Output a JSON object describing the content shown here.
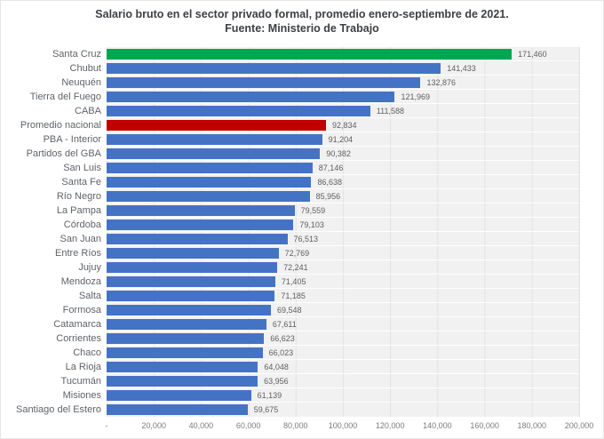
{
  "title": {
    "line1": "Salario bruto en el sector privado formal, promedio enero-septiembre de 2021.",
    "line2": "Fuente: Ministerio de Trabajo"
  },
  "chart_data": {
    "type": "bar",
    "orientation": "horizontal",
    "title": "Salario bruto en el sector privado formal, promedio enero-septiembre de 2021. Fuente: Ministerio de Trabajo",
    "categories": [
      "Santa Cruz",
      "Chubut",
      "Neuquén",
      "Tierra del Fuego",
      "CABA",
      "Promedio nacional",
      "PBA - Interior",
      "Partidos del GBA",
      "San Luis",
      "Santa Fe",
      "Río Negro",
      "La Pampa",
      "Córdoba",
      "San Juan",
      "Entre Ríos",
      "Jujuy",
      "Mendoza",
      "Salta",
      "Formosa",
      "Catamarca",
      "Corrientes",
      "Chaco",
      "La Rioja",
      "Tucumán",
      "Misiones",
      "Santiago del Estero"
    ],
    "values": [
      171460,
      141433,
      132876,
      121969,
      111588,
      92834,
      91204,
      90382,
      87146,
      86638,
      85956,
      79559,
      79103,
      76513,
      72769,
      72241,
      71405,
      71185,
      69548,
      67611,
      66623,
      66023,
      64048,
      63956,
      61139,
      59675
    ],
    "x_ticks": [
      "-",
      "20,000",
      "40,000",
      "60,000",
      "80,000",
      "100,000",
      "120,000",
      "140,000",
      "160,000",
      "180,000",
      "200,000"
    ],
    "xlim": [
      0,
      200000
    ],
    "grid": "vertical",
    "legend": "none",
    "colors": {
      "default_bar": "#4473c5",
      "plot_background": "#f1f1f1",
      "gridline": "#e2e2e2"
    },
    "highlights": [
      {
        "index": 0,
        "color": "#00a651",
        "meaning": "highest-bar"
      },
      {
        "index": 5,
        "color": "#c00000",
        "meaning": "national-average-bar"
      }
    ]
  }
}
